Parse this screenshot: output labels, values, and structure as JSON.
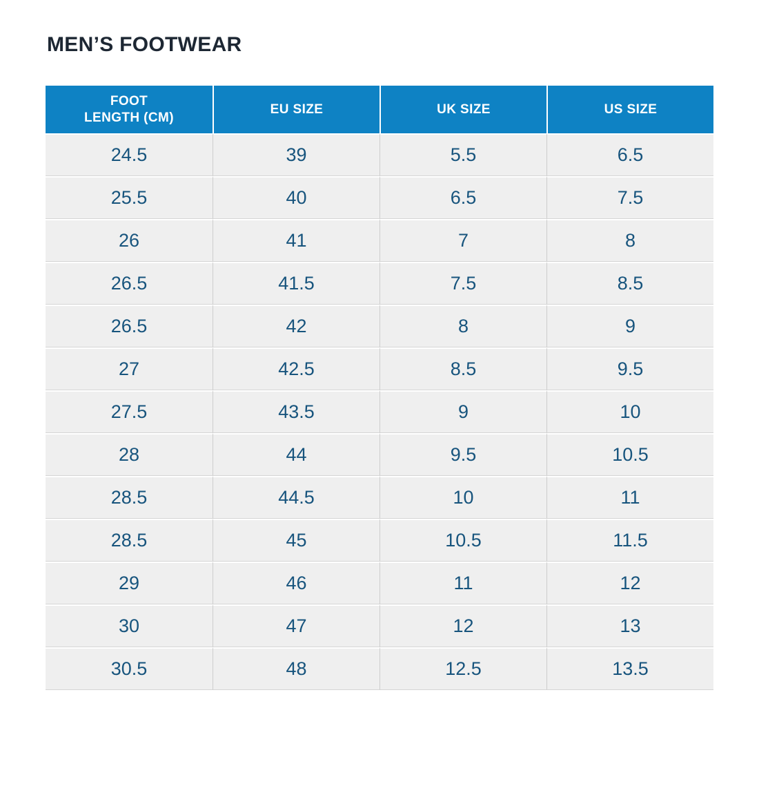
{
  "page": {
    "title": "MEN’S FOOTWEAR"
  },
  "colors": {
    "header_bg": "#0e82c4",
    "header_text": "#ffffff",
    "cell_bg": "#efefef",
    "cell_text": "#17547d",
    "title_text": "#1d2733"
  },
  "table": {
    "headers": [
      [
        "FOOT",
        "LENGTH (CM)"
      ],
      [
        "EU SIZE"
      ],
      [
        "UK SIZE"
      ],
      [
        "US SIZE"
      ]
    ],
    "rows": [
      [
        "24.5",
        "39",
        "5.5",
        "6.5"
      ],
      [
        "25.5",
        "40",
        "6.5",
        "7.5"
      ],
      [
        "26",
        "41",
        "7",
        "8"
      ],
      [
        "26.5",
        "41.5",
        "7.5",
        "8.5"
      ],
      [
        "26.5",
        "42",
        "8",
        "9"
      ],
      [
        "27",
        "42.5",
        "8.5",
        "9.5"
      ],
      [
        "27.5",
        "43.5",
        "9",
        "10"
      ],
      [
        "28",
        "44",
        "9.5",
        "10.5"
      ],
      [
        "28.5",
        "44.5",
        "10",
        "11"
      ],
      [
        "28.5",
        "45",
        "10.5",
        "11.5"
      ],
      [
        "29",
        "46",
        "11",
        "12"
      ],
      [
        "30",
        "47",
        "12",
        "13"
      ],
      [
        "30.5",
        "48",
        "12.5",
        "13.5"
      ]
    ]
  },
  "chart_data": {
    "type": "table",
    "title": "MEN’S FOOTWEAR",
    "columns": [
      "FOOT LENGTH (CM)",
      "EU SIZE",
      "UK SIZE",
      "US SIZE"
    ],
    "rows": [
      [
        24.5,
        39,
        5.5,
        6.5
      ],
      [
        25.5,
        40,
        6.5,
        7.5
      ],
      [
        26,
        41,
        7,
        8
      ],
      [
        26.5,
        41.5,
        7.5,
        8.5
      ],
      [
        26.5,
        42,
        8,
        9
      ],
      [
        27,
        42.5,
        8.5,
        9.5
      ],
      [
        27.5,
        43.5,
        9,
        10
      ],
      [
        28,
        44,
        9.5,
        10.5
      ],
      [
        28.5,
        44.5,
        10,
        11
      ],
      [
        28.5,
        45,
        10.5,
        11.5
      ],
      [
        29,
        46,
        11,
        12
      ],
      [
        30,
        47,
        12,
        13
      ],
      [
        30.5,
        48,
        12.5,
        13.5
      ]
    ]
  }
}
